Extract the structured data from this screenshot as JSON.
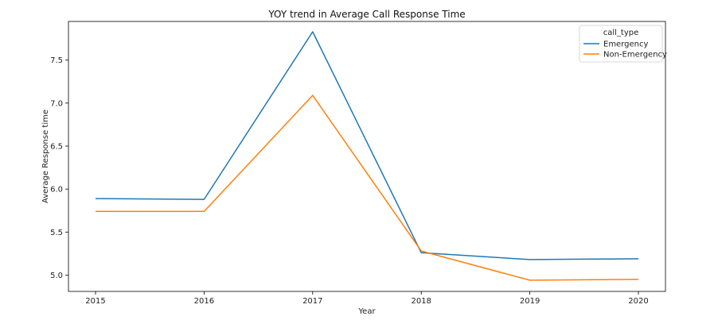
{
  "chart_data": {
    "type": "line",
    "title": "YOY trend in Average Call Response Time",
    "xlabel": "Year",
    "ylabel": "Average Response time",
    "x": [
      2015,
      2016,
      2017,
      2018,
      2019,
      2020
    ],
    "yticks": [
      5.0,
      5.5,
      6.0,
      6.5,
      7.0,
      7.5
    ],
    "ylim": [
      4.81,
      7.95
    ],
    "grid": false,
    "legend": {
      "title": "call_type",
      "placement": "top-right"
    },
    "series": [
      {
        "name": "Emergency",
        "color": "#1f77b4",
        "values": [
          5.89,
          5.88,
          7.83,
          5.26,
          5.18,
          5.19
        ]
      },
      {
        "name": "Non-Emergency",
        "color": "#ff7f0e",
        "values": [
          5.74,
          5.74,
          7.09,
          5.28,
          4.94,
          4.95
        ]
      }
    ]
  }
}
